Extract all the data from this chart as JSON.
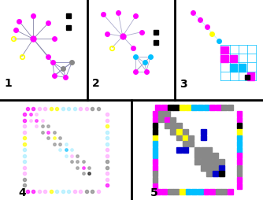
{
  "bg_color": "#ffffff",
  "border_color": "#000000",
  "label_fontsize": 10,
  "magenta": "#ff00ff",
  "yellow": "#ffff00",
  "cyan": "#00bfff",
  "gray": "#888888",
  "dark_gray": "#444444",
  "black": "#000000",
  "blue": "#0000cc",
  "light_magenta": "#ffaaff",
  "light_cyan": "#aaeeff",
  "light_gray": "#cccccc"
}
